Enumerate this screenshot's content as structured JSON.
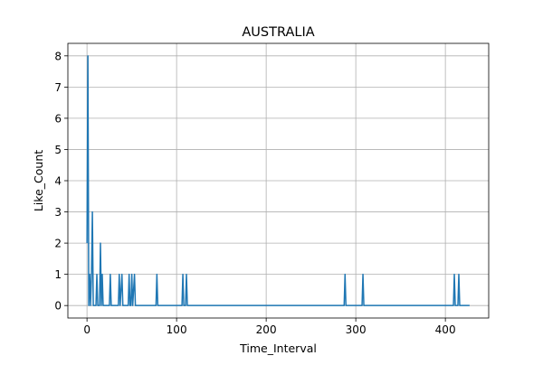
{
  "chart_data": {
    "type": "line",
    "title": "AUSTRALIA",
    "xlabel": "Time_Interval",
    "ylabel": "Like_Count",
    "xlim": [
      -21.35,
      448.35
    ],
    "ylim": [
      -0.4,
      8.4
    ],
    "xticks": [
      0,
      100,
      200,
      300,
      400
    ],
    "yticks": [
      0,
      1,
      2,
      3,
      4,
      5,
      6,
      7,
      8
    ],
    "grid": true,
    "series": [
      {
        "color": "#1f77b4",
        "points": [
          [
            0,
            2
          ],
          [
            1,
            8
          ],
          [
            2,
            0
          ],
          [
            3,
            1
          ],
          [
            4,
            0
          ],
          [
            5,
            1
          ],
          [
            6,
            3
          ],
          [
            7,
            0
          ],
          [
            10,
            0
          ],
          [
            11,
            1
          ],
          [
            12,
            0
          ],
          [
            14,
            0
          ],
          [
            15,
            2
          ],
          [
            16,
            0
          ],
          [
            17,
            1
          ],
          [
            18,
            0
          ],
          [
            25,
            0
          ],
          [
            26,
            1
          ],
          [
            27,
            0
          ],
          [
            35,
            0
          ],
          [
            36,
            1
          ],
          [
            37,
            0
          ],
          [
            39,
            1
          ],
          [
            40,
            0
          ],
          [
            46,
            0
          ],
          [
            47,
            1
          ],
          [
            48,
            0
          ],
          [
            49,
            0
          ],
          [
            50,
            1
          ],
          [
            51,
            0
          ],
          [
            53,
            1
          ],
          [
            54,
            0
          ],
          [
            77,
            0
          ],
          [
            78,
            1
          ],
          [
            79,
            0
          ],
          [
            106,
            0
          ],
          [
            107,
            1
          ],
          [
            108,
            0
          ],
          [
            110,
            0
          ],
          [
            111,
            1
          ],
          [
            112,
            0
          ],
          [
            287,
            0
          ],
          [
            288,
            1
          ],
          [
            289,
            0
          ],
          [
            307,
            0
          ],
          [
            308,
            1
          ],
          [
            309,
            0
          ],
          [
            409,
            0
          ],
          [
            410,
            1
          ],
          [
            411,
            0
          ],
          [
            414,
            0
          ],
          [
            415,
            1
          ],
          [
            416,
            0
          ],
          [
            427,
            0
          ]
        ]
      }
    ]
  }
}
